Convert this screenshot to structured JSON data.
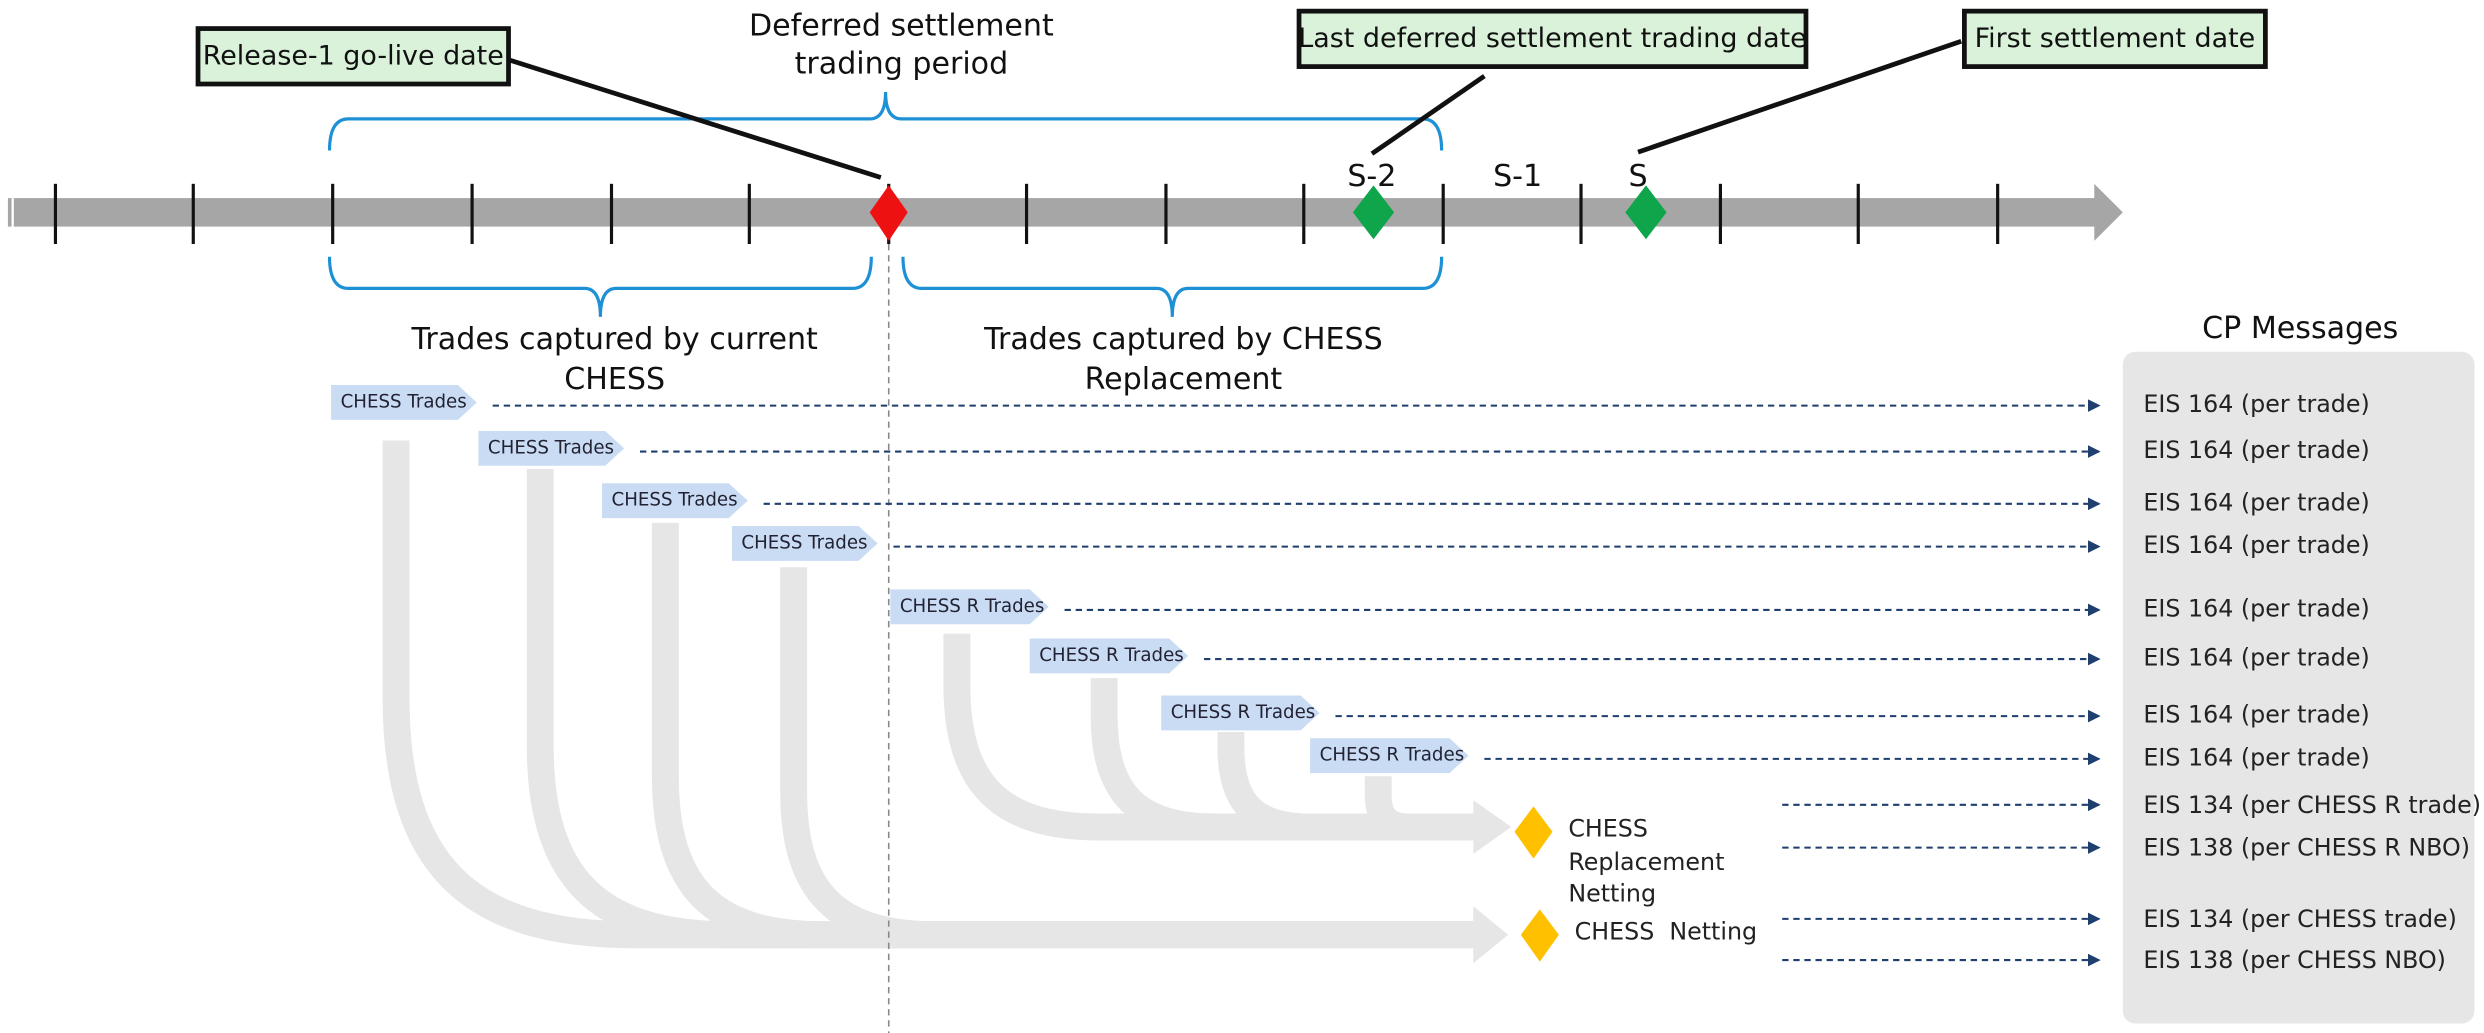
{
  "callouts": {
    "release": "Release-1 go-live date",
    "last_deferred": "Last deferred settlement trading date",
    "first_settlement": "First settlement date"
  },
  "period_label": [
    "Deferred settlement",
    "trading period"
  ],
  "timeline_labels": [
    "S-2",
    "S-1",
    "S"
  ],
  "current_label": [
    "Trades captured by current",
    "CHESS"
  ],
  "replacement_label": [
    "Trades captured by CHESS",
    "Replacement"
  ],
  "cp_header": "CP Messages",
  "trade_rows": [
    {
      "chip": "CHESS Trades",
      "message": "EIS 164 (per trade)"
    },
    {
      "chip": "CHESS Trades",
      "message": "EIS 164 (per trade)"
    },
    {
      "chip": "CHESS Trades",
      "message": "EIS 164 (per trade)"
    },
    {
      "chip": "CHESS Trades",
      "message": "EIS 164 (per trade)"
    },
    {
      "chip": "CHESS R Trades",
      "message": "EIS 164 (per trade)"
    },
    {
      "chip": "CHESS R Trades",
      "message": "EIS 164 (per trade)"
    },
    {
      "chip": "CHESS R Trades",
      "message": "EIS 164 (per trade)"
    },
    {
      "chip": "CHESS R Trades",
      "message": "EIS 164 (per trade)"
    }
  ],
  "replacement_netting": {
    "label": [
      "CHESS",
      "Replacement",
      "Netting"
    ],
    "messages": [
      "EIS 134 (per CHESS R trade)",
      "EIS 138 (per CHESS R NBO)"
    ]
  },
  "chess_netting": {
    "label": "CHESS  Netting",
    "messages": [
      "EIS 134 (per CHESS trade)",
      "EIS 138 (per CHESS NBO)"
    ]
  }
}
